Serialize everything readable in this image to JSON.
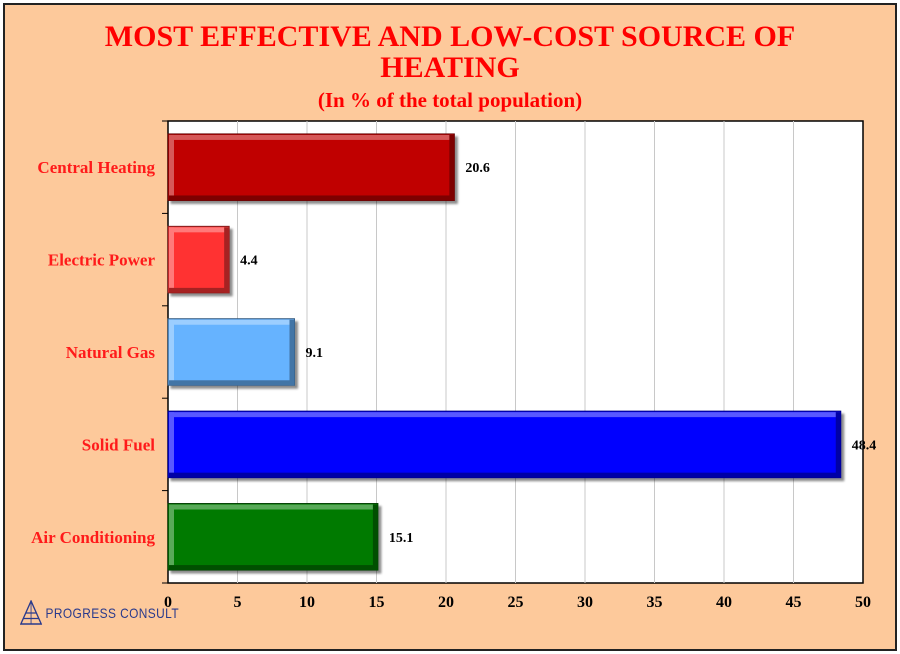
{
  "chart_data": {
    "type": "bar",
    "orientation": "horizontal",
    "title": "MOST EFFECTIVE AND LOW-COST SOURCE OF HEATING",
    "title_lines": [
      "MOST EFFECTIVE AND LOW-COST SOURCE OF",
      "HEATING"
    ],
    "subtitle": "(In % of the total population)",
    "categories": [
      "Central Heating",
      "Electric Power",
      "Natural Gas",
      "Solid Fuel",
      "Air Conditioning"
    ],
    "values": [
      20.6,
      4.4,
      9.1,
      48.4,
      15.1
    ],
    "value_labels": [
      "20.6",
      "4.4",
      "9.1",
      "48.4",
      "15.1"
    ],
    "colors": [
      "#c00000",
      "#ff3333",
      "#66b3ff",
      "#0000ff",
      "#007a00"
    ],
    "xlim": [
      0,
      50
    ],
    "xticks": [
      0,
      5,
      10,
      15,
      20,
      25,
      30,
      35,
      40,
      45,
      50
    ],
    "grid": true,
    "xlabel": "",
    "ylabel": ""
  },
  "logo": {
    "text": "PROGRESS CONSULT",
    "icon": "progress-consult-pyramid-icon"
  },
  "colors": {
    "background": "#fdc99b",
    "title": "#ff0000",
    "category_label": "#ff1a1a",
    "plot_area": "#ffffff"
  }
}
